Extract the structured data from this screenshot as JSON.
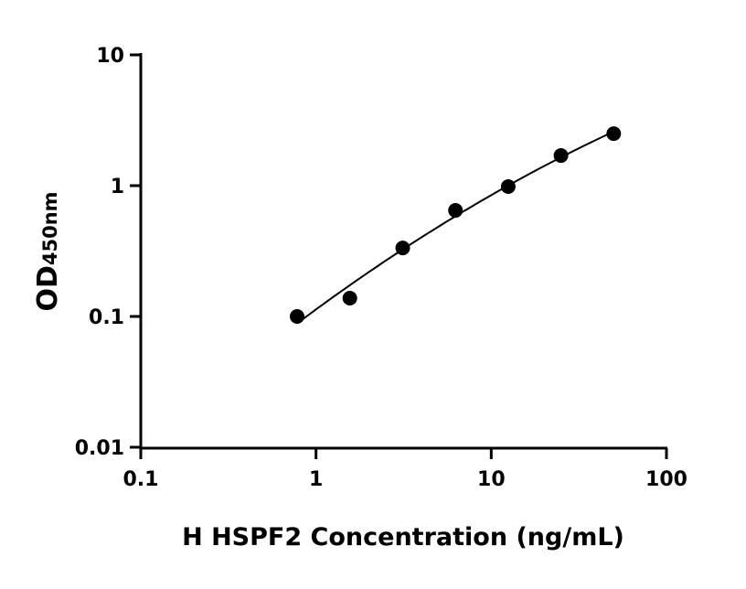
{
  "chart_data": {
    "type": "scatter",
    "title": "",
    "xlabel": "H HSPF2 Concentration (ng/mL)",
    "ylabel_main": "OD",
    "ylabel_sub": "450nm",
    "x_scale": "log",
    "y_scale": "log",
    "xlim": [
      0.1,
      100
    ],
    "ylim": [
      0.01,
      10
    ],
    "x_ticks": [
      "0.1",
      "1",
      "10",
      "100"
    ],
    "y_ticks": [
      "0.01",
      "0.1",
      "1",
      "10"
    ],
    "grid": false,
    "fit_curve": true,
    "series": [
      {
        "x": [
          0.78,
          1.56,
          3.125,
          6.25,
          12.5,
          25,
          50
        ],
        "y": [
          0.1,
          0.138,
          0.334,
          0.647,
          0.984,
          1.7,
          2.5
        ]
      }
    ],
    "colors": {
      "points": "#000000",
      "line": "#000000"
    }
  }
}
